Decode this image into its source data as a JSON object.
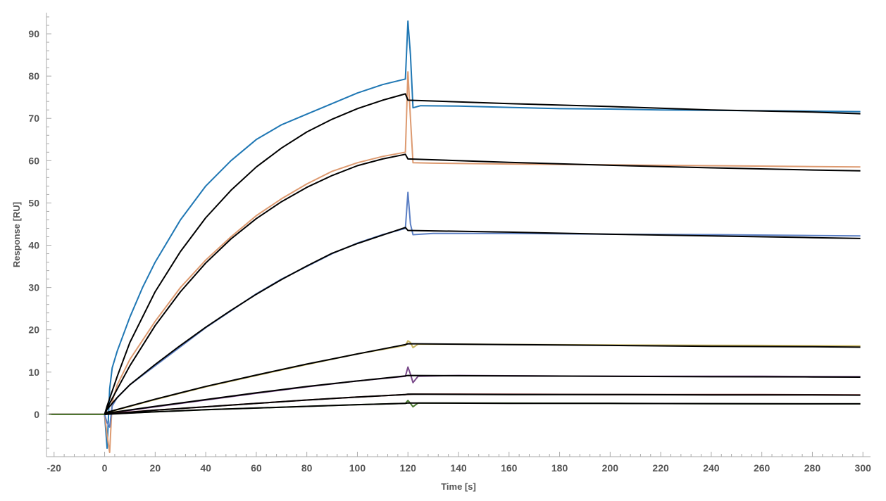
{
  "chart_data": {
    "type": "line",
    "xlabel": "Time [s]",
    "ylabel": "Response [RU]",
    "xlim": [
      -23,
      303
    ],
    "ylim": [
      -10,
      95
    ],
    "x_ticks": [
      -20,
      0,
      20,
      40,
      60,
      80,
      100,
      120,
      140,
      160,
      180,
      200,
      220,
      240,
      260,
      280,
      300
    ],
    "y_ticks": [
      0,
      10,
      20,
      30,
      40,
      50,
      60,
      70,
      80,
      90
    ],
    "grid": false,
    "legend": "none",
    "series": [
      {
        "color": "#1f77b4",
        "points": [
          [
            -22,
            0
          ],
          [
            -10,
            0
          ],
          [
            0,
            0
          ],
          [
            1,
            -8
          ],
          [
            2,
            6
          ],
          [
            3,
            11
          ],
          [
            5,
            15
          ],
          [
            10,
            23
          ],
          [
            15,
            30
          ],
          [
            20,
            36
          ],
          [
            30,
            46
          ],
          [
            40,
            54
          ],
          [
            50,
            60
          ],
          [
            60,
            65
          ],
          [
            70,
            68.5
          ],
          [
            80,
            71
          ],
          [
            90,
            73.5
          ],
          [
            100,
            76
          ],
          [
            110,
            78
          ],
          [
            119,
            79.3
          ],
          [
            120,
            93
          ],
          [
            121,
            85
          ],
          [
            122,
            72.5
          ],
          [
            125,
            73
          ],
          [
            140,
            72.9
          ],
          [
            160,
            72.6
          ],
          [
            180,
            72.3
          ],
          [
            200,
            72.2
          ],
          [
            220,
            72.0
          ],
          [
            240,
            71.9
          ],
          [
            260,
            71.8
          ],
          [
            280,
            71.7
          ],
          [
            299,
            71.6
          ]
        ]
      },
      {
        "color": "#dd9a70",
        "points": [
          [
            -22,
            0
          ],
          [
            0,
            0
          ],
          [
            1,
            -5
          ],
          [
            2,
            -9
          ],
          [
            3,
            3
          ],
          [
            5,
            7
          ],
          [
            10,
            13
          ],
          [
            20,
            22
          ],
          [
            30,
            30
          ],
          [
            40,
            36.5
          ],
          [
            50,
            42
          ],
          [
            60,
            47
          ],
          [
            70,
            51
          ],
          [
            80,
            54.5
          ],
          [
            90,
            57.5
          ],
          [
            100,
            59.5
          ],
          [
            110,
            61
          ],
          [
            119,
            62
          ],
          [
            120,
            81
          ],
          [
            121,
            70
          ],
          [
            122,
            59.5
          ],
          [
            130,
            59.4
          ],
          [
            160,
            59.2
          ],
          [
            200,
            59.0
          ],
          [
            240,
            58.8
          ],
          [
            280,
            58.6
          ],
          [
            299,
            58.5
          ]
        ]
      },
      {
        "color": "#5b7fc4",
        "points": [
          [
            -22,
            0
          ],
          [
            0,
            0
          ],
          [
            1,
            -2
          ],
          [
            2,
            -3
          ],
          [
            3,
            2
          ],
          [
            5,
            4
          ],
          [
            10,
            7
          ],
          [
            20,
            11.5
          ],
          [
            30,
            16
          ],
          [
            40,
            20.5
          ],
          [
            50,
            24.5
          ],
          [
            60,
            28.5
          ],
          [
            70,
            32
          ],
          [
            80,
            35
          ],
          [
            90,
            38
          ],
          [
            100,
            40.5
          ],
          [
            110,
            42.5
          ],
          [
            119,
            44
          ],
          [
            120,
            52.5
          ],
          [
            121,
            45
          ],
          [
            122,
            42.5
          ],
          [
            130,
            42.8
          ],
          [
            160,
            42.8
          ],
          [
            200,
            42.6
          ],
          [
            240,
            42.5
          ],
          [
            280,
            42.3
          ],
          [
            299,
            42.2
          ]
        ]
      },
      {
        "color": "#c9b660",
        "points": [
          [
            -22,
            0
          ],
          [
            0,
            0
          ],
          [
            2,
            0.6
          ],
          [
            20,
            3.5
          ],
          [
            40,
            6.5
          ],
          [
            60,
            9.2
          ],
          [
            80,
            11.8
          ],
          [
            100,
            14.3
          ],
          [
            119,
            16.3
          ],
          [
            120,
            17.4
          ],
          [
            121,
            17
          ],
          [
            122,
            15.8
          ],
          [
            124,
            16.6
          ],
          [
            140,
            16.6
          ],
          [
            200,
            16.4
          ],
          [
            260,
            16.3
          ],
          [
            299,
            16.2
          ]
        ]
      },
      {
        "color": "#7a4a8a",
        "points": [
          [
            -22,
            0
          ],
          [
            0,
            0
          ],
          [
            2,
            0.3
          ],
          [
            20,
            1.8
          ],
          [
            40,
            3.4
          ],
          [
            60,
            5
          ],
          [
            80,
            6.5
          ],
          [
            100,
            7.9
          ],
          [
            119,
            9
          ],
          [
            120,
            11.2
          ],
          [
            121,
            9.5
          ],
          [
            122,
            7.5
          ],
          [
            124,
            9
          ],
          [
            140,
            9.2
          ],
          [
            200,
            9.0
          ],
          [
            260,
            9.0
          ],
          [
            299,
            8.9
          ]
        ]
      },
      {
        "color": "#8b2a2a",
        "points": [
          [
            -22,
            0
          ],
          [
            0,
            0
          ],
          [
            2,
            0.2
          ],
          [
            20,
            1
          ],
          [
            40,
            1.8
          ],
          [
            60,
            2.6
          ],
          [
            80,
            3.4
          ],
          [
            100,
            4.1
          ],
          [
            119,
            4.7
          ],
          [
            122,
            4.8
          ],
          [
            140,
            4.8
          ],
          [
            200,
            4.7
          ],
          [
            260,
            4.7
          ],
          [
            299,
            4.6
          ]
        ]
      },
      {
        "color": "#4a7a30",
        "points": [
          [
            -22,
            0
          ],
          [
            0,
            0
          ],
          [
            2,
            0.1
          ],
          [
            20,
            0.6
          ],
          [
            40,
            1.1
          ],
          [
            60,
            1.5
          ],
          [
            80,
            1.9
          ],
          [
            100,
            2.3
          ],
          [
            119,
            2.6
          ],
          [
            120,
            3.3
          ],
          [
            121,
            2.6
          ],
          [
            122,
            1.8
          ],
          [
            124,
            2.7
          ],
          [
            140,
            2.7
          ],
          [
            200,
            2.6
          ],
          [
            260,
            2.5
          ],
          [
            299,
            2.5
          ]
        ]
      }
    ],
    "fits": [
      {
        "color": "#000000",
        "points": [
          [
            0,
            0
          ],
          [
            1,
            2
          ],
          [
            5,
            9
          ],
          [
            10,
            17
          ],
          [
            20,
            29
          ],
          [
            30,
            38.5
          ],
          [
            40,
            46.5
          ],
          [
            50,
            53
          ],
          [
            60,
            58.5
          ],
          [
            70,
            63
          ],
          [
            80,
            66.8
          ],
          [
            90,
            69.8
          ],
          [
            100,
            72.3
          ],
          [
            110,
            74.3
          ],
          [
            119,
            75.8
          ],
          [
            120,
            74.3
          ],
          [
            160,
            73.5
          ],
          [
            200,
            72.8
          ],
          [
            240,
            72.0
          ],
          [
            280,
            71.5
          ],
          [
            299,
            71.1
          ]
        ]
      },
      {
        "color": "#000000",
        "points": [
          [
            0,
            0
          ],
          [
            1,
            1.5
          ],
          [
            5,
            6
          ],
          [
            10,
            11.5
          ],
          [
            20,
            21
          ],
          [
            30,
            29
          ],
          [
            40,
            35.8
          ],
          [
            50,
            41.5
          ],
          [
            60,
            46.3
          ],
          [
            70,
            50.3
          ],
          [
            80,
            53.7
          ],
          [
            90,
            56.5
          ],
          [
            100,
            58.8
          ],
          [
            110,
            60.4
          ],
          [
            119,
            61.5
          ],
          [
            120,
            60.4
          ],
          [
            160,
            59.6
          ],
          [
            200,
            58.9
          ],
          [
            240,
            58.3
          ],
          [
            280,
            57.8
          ],
          [
            299,
            57.6
          ]
        ]
      },
      {
        "color": "#000000",
        "points": [
          [
            0,
            0
          ],
          [
            1,
            1.2
          ],
          [
            5,
            4
          ],
          [
            10,
            7
          ],
          [
            20,
            11.8
          ],
          [
            30,
            16.3
          ],
          [
            40,
            20.6
          ],
          [
            50,
            24.6
          ],
          [
            60,
            28.4
          ],
          [
            70,
            31.9
          ],
          [
            80,
            35.1
          ],
          [
            90,
            38.1
          ],
          [
            100,
            40.4
          ],
          [
            110,
            42.4
          ],
          [
            119,
            44.2
          ],
          [
            120,
            43.5
          ],
          [
            160,
            43.1
          ],
          [
            200,
            42.6
          ],
          [
            240,
            42.2
          ],
          [
            280,
            41.8
          ],
          [
            299,
            41.6
          ]
        ]
      },
      {
        "color": "#000000",
        "points": [
          [
            0,
            0
          ],
          [
            1,
            0.5
          ],
          [
            20,
            3.6
          ],
          [
            40,
            6.6
          ],
          [
            60,
            9.3
          ],
          [
            80,
            11.9
          ],
          [
            100,
            14.3
          ],
          [
            119,
            16.5
          ],
          [
            120,
            16.7
          ],
          [
            160,
            16.5
          ],
          [
            200,
            16.3
          ],
          [
            240,
            16.1
          ],
          [
            280,
            16.0
          ],
          [
            299,
            15.9
          ]
        ]
      },
      {
        "color": "#000000",
        "points": [
          [
            0,
            0
          ],
          [
            1,
            0.3
          ],
          [
            20,
            1.9
          ],
          [
            40,
            3.5
          ],
          [
            60,
            5.1
          ],
          [
            80,
            6.6
          ],
          [
            100,
            7.9
          ],
          [
            119,
            9.1
          ],
          [
            120,
            9.2
          ],
          [
            160,
            9.1
          ],
          [
            200,
            9.0
          ],
          [
            240,
            8.9
          ],
          [
            280,
            8.85
          ],
          [
            299,
            8.8
          ]
        ]
      },
      {
        "color": "#000000",
        "points": [
          [
            0,
            0
          ],
          [
            20,
            1.0
          ],
          [
            40,
            1.8
          ],
          [
            60,
            2.6
          ],
          [
            80,
            3.4
          ],
          [
            100,
            4.1
          ],
          [
            119,
            4.7
          ],
          [
            120,
            4.8
          ],
          [
            160,
            4.7
          ],
          [
            200,
            4.7
          ],
          [
            240,
            4.6
          ],
          [
            280,
            4.6
          ],
          [
            299,
            4.55
          ]
        ]
      },
      {
        "color": "#000000",
        "points": [
          [
            0,
            0
          ],
          [
            20,
            0.6
          ],
          [
            40,
            1.1
          ],
          [
            60,
            1.5
          ],
          [
            80,
            1.9
          ],
          [
            100,
            2.3
          ],
          [
            119,
            2.6
          ],
          [
            120,
            2.7
          ],
          [
            160,
            2.6
          ],
          [
            200,
            2.6
          ],
          [
            240,
            2.55
          ],
          [
            280,
            2.5
          ],
          [
            299,
            2.5
          ]
        ]
      }
    ]
  }
}
